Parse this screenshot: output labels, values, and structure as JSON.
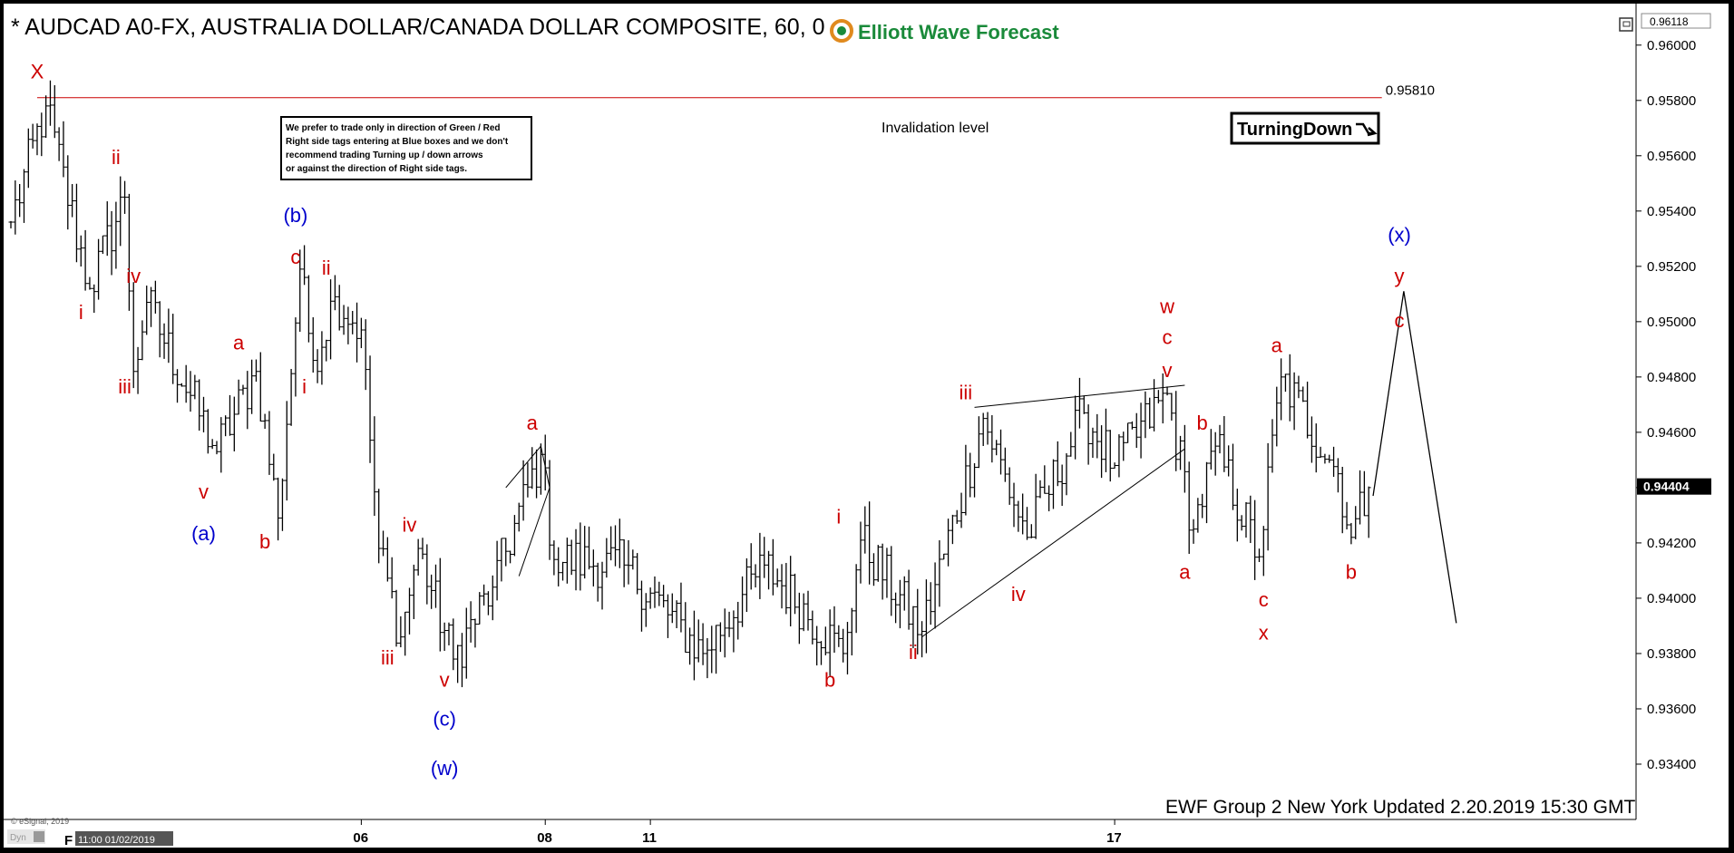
{
  "header": {
    "title": "* AUDCAD A0-FX, AUSTRALIA DOLLAR/CANADA DOLLAR COMPOSITE, 60, 0",
    "brand": "Elliott Wave Forecast",
    "turning_label": "TurningDown"
  },
  "notes": {
    "box_lines": [
      "We prefer to trade only in direction of Green / Red",
      "Right side tags entering at Blue boxes and we don't",
      "recommend trading Turning up / down arrows",
      "or against the direction of Right side tags."
    ],
    "invalidation_label": "Invalidation level",
    "invalidation_value": "0.95810",
    "footer": "EWF Group 2 New York Updated 2.20.2019 15:30 GMT",
    "copyright": "© eSignal, 2019",
    "corner_tags": [
      "Dyn",
      "F"
    ],
    "date_stamp": "11:00 01/02/2019",
    "top_price": "0.96118",
    "last_price": "0.94404"
  },
  "colors": {
    "red": "#cc0000",
    "blue": "#0000cc",
    "green": "#1a8a3a",
    "bg": "#ffffff",
    "line": "#000000"
  },
  "chart_data": {
    "type": "ohlc",
    "ylim": [
      0.932,
      0.9615
    ],
    "x_range_bars": [
      0,
      370
    ],
    "y_ticks": [
      "0.96000",
      "0.95800",
      "0.95600",
      "0.95400",
      "0.95200",
      "0.95000",
      "0.94800",
      "0.94600",
      "0.94400",
      "0.94200",
      "0.94000",
      "0.93800",
      "0.93600",
      "0.93400"
    ],
    "x_ticks": [
      {
        "label": "06",
        "bar": 80
      },
      {
        "label": "08",
        "bar": 122
      },
      {
        "label": "11",
        "bar": 146
      },
      {
        "label": "17",
        "bar": 252
      }
    ],
    "invalidation_level": 0.9581,
    "last_price": 0.94404,
    "anchors": [
      {
        "bar": 0,
        "price": 0.9536
      },
      {
        "bar": 8,
        "price": 0.9578
      },
      {
        "bar": 18,
        "price": 0.9512
      },
      {
        "bar": 26,
        "price": 0.9545
      },
      {
        "bar": 28,
        "price": 0.9482
      },
      {
        "bar": 31,
        "price": 0.9507
      },
      {
        "bar": 47,
        "price": 0.9453
      },
      {
        "bar": 56,
        "price": 0.9482
      },
      {
        "bar": 61,
        "price": 0.9429
      },
      {
        "bar": 66,
        "price": 0.9519
      },
      {
        "bar": 69,
        "price": 0.9486
      },
      {
        "bar": 74,
        "price": 0.9509
      },
      {
        "bar": 80,
        "price": 0.9497
      },
      {
        "bar": 84,
        "price": 0.9418
      },
      {
        "bar": 89,
        "price": 0.9386
      },
      {
        "bar": 93,
        "price": 0.9418
      },
      {
        "bar": 101,
        "price": 0.9378
      },
      {
        "bar": 110,
        "price": 0.9404
      },
      {
        "bar": 121,
        "price": 0.9452
      },
      {
        "bar": 124,
        "price": 0.9414
      },
      {
        "bar": 140,
        "price": 0.9412
      },
      {
        "bar": 158,
        "price": 0.938
      },
      {
        "bar": 172,
        "price": 0.9412
      },
      {
        "bar": 190,
        "price": 0.938
      },
      {
        "bar": 194,
        "price": 0.9421
      },
      {
        "bar": 208,
        "price": 0.9388
      },
      {
        "bar": 222,
        "price": 0.9465
      },
      {
        "bar": 232,
        "price": 0.9422
      },
      {
        "bar": 245,
        "price": 0.9467
      },
      {
        "bar": 252,
        "price": 0.9448
      },
      {
        "bar": 264,
        "price": 0.9474
      },
      {
        "bar": 270,
        "price": 0.9425
      },
      {
        "bar": 275,
        "price": 0.9455
      },
      {
        "bar": 285,
        "price": 0.9415
      },
      {
        "bar": 290,
        "price": 0.948
      },
      {
        "bar": 303,
        "price": 0.9445
      },
      {
        "bar": 306,
        "price": 0.9422
      },
      {
        "bar": 310,
        "price": 0.944
      }
    ],
    "projection": [
      {
        "bar": 311,
        "price": 0.9437
      },
      {
        "bar": 318,
        "price": 0.9511
      },
      {
        "bar": 330,
        "price": 0.9391
      }
    ],
    "lines": [
      {
        "from": {
          "bar": 220,
          "price": 0.9469
        },
        "to": {
          "bar": 268,
          "price": 0.9477
        }
      },
      {
        "from": {
          "bar": 208,
          "price": 0.9386
        },
        "to": {
          "bar": 268,
          "price": 0.9454
        }
      },
      {
        "from": {
          "bar": 113,
          "price": 0.944
        },
        "to": {
          "bar": 121,
          "price": 0.9455
        }
      },
      {
        "from": {
          "bar": 116,
          "price": 0.9408
        },
        "to": {
          "bar": 123,
          "price": 0.944
        }
      },
      {
        "from": {
          "bar": 121,
          "price": 0.9455
        },
        "to": {
          "bar": 123,
          "price": 0.944
        }
      }
    ],
    "labels": [
      {
        "text": "X",
        "bar": 6,
        "price": 0.9588,
        "color": "red"
      },
      {
        "text": "ii",
        "bar": 24,
        "price": 0.9557,
        "color": "red"
      },
      {
        "text": "i",
        "bar": 16,
        "price": 0.9501,
        "color": "red"
      },
      {
        "text": "iv",
        "bar": 28,
        "price": 0.9514,
        "color": "red"
      },
      {
        "text": "iii",
        "bar": 26,
        "price": 0.9474,
        "color": "red"
      },
      {
        "text": "v",
        "bar": 44,
        "price": 0.9436,
        "color": "red"
      },
      {
        "text": "(a)",
        "bar": 44,
        "price": 0.9421,
        "color": "blue"
      },
      {
        "text": "a",
        "bar": 52,
        "price": 0.949,
        "color": "red"
      },
      {
        "text": "b",
        "bar": 58,
        "price": 0.9418,
        "color": "red"
      },
      {
        "text": "(b)",
        "bar": 65,
        "price": 0.9536,
        "color": "blue"
      },
      {
        "text": "c",
        "bar": 65,
        "price": 0.9521,
        "color": "red"
      },
      {
        "text": "ii",
        "bar": 72,
        "price": 0.9517,
        "color": "red"
      },
      {
        "text": "i",
        "bar": 67,
        "price": 0.9474,
        "color": "red"
      },
      {
        "text": "iv",
        "bar": 91,
        "price": 0.9424,
        "color": "red"
      },
      {
        "text": "iii",
        "bar": 86,
        "price": 0.9376,
        "color": "red"
      },
      {
        "text": "v",
        "bar": 99,
        "price": 0.9368,
        "color": "red"
      },
      {
        "text": "(c)",
        "bar": 99,
        "price": 0.9354,
        "color": "blue"
      },
      {
        "text": "(w)",
        "bar": 99,
        "price": 0.9336,
        "color": "blue"
      },
      {
        "text": "a",
        "bar": 119,
        "price": 0.9461,
        "color": "red"
      },
      {
        "text": "i",
        "bar": 189,
        "price": 0.9427,
        "color": "red"
      },
      {
        "text": "b",
        "bar": 187,
        "price": 0.9368,
        "color": "red"
      },
      {
        "text": "iii",
        "bar": 218,
        "price": 0.9472,
        "color": "red"
      },
      {
        "text": "ii",
        "bar": 206,
        "price": 0.9378,
        "color": "red"
      },
      {
        "text": "iv",
        "bar": 230,
        "price": 0.9399,
        "color": "red"
      },
      {
        "text": "w",
        "bar": 264,
        "price": 0.9503,
        "color": "red"
      },
      {
        "text": "c",
        "bar": 264,
        "price": 0.9492,
        "color": "red"
      },
      {
        "text": "v",
        "bar": 264,
        "price": 0.948,
        "color": "red"
      },
      {
        "text": "b",
        "bar": 272,
        "price": 0.9461,
        "color": "red"
      },
      {
        "text": "a",
        "bar": 268,
        "price": 0.9407,
        "color": "red"
      },
      {
        "text": "a",
        "bar": 289,
        "price": 0.9489,
        "color": "red"
      },
      {
        "text": "c",
        "bar": 286,
        "price": 0.9397,
        "color": "red"
      },
      {
        "text": "x",
        "bar": 286,
        "price": 0.9385,
        "color": "red"
      },
      {
        "text": "b",
        "bar": 306,
        "price": 0.9407,
        "color": "red"
      },
      {
        "text": "(x)",
        "bar": 317,
        "price": 0.9529,
        "color": "blue"
      },
      {
        "text": "y",
        "bar": 317,
        "price": 0.9514,
        "color": "red"
      },
      {
        "text": "c",
        "bar": 317,
        "price": 0.9498,
        "color": "red"
      }
    ]
  }
}
